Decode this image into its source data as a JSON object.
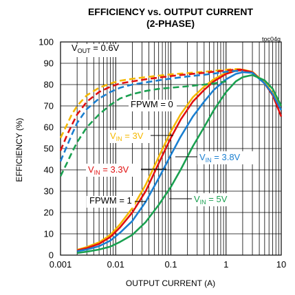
{
  "chart_data": {
    "type": "line",
    "title": "EFFICIENCY vs. OUTPUT CURRENT",
    "subtitle": "(2-PHASE)",
    "figure_id": "toc04g",
    "xlabel": "OUTPUT CURRENT (A)",
    "ylabel": "EFFICIENCY (%)",
    "x_scale": "log",
    "xlim": [
      0.001,
      10
    ],
    "ylim": [
      0,
      100
    ],
    "x_ticks": [
      "0.001",
      "0.01",
      "0.1",
      "1",
      "10"
    ],
    "y_ticks": [
      "0",
      "10",
      "20",
      "30",
      "40",
      "50",
      "60",
      "70",
      "80",
      "90",
      "100"
    ],
    "grid": true,
    "series": [
      {
        "color": "#f5b800",
        "dash": "dashed",
        "x": [
          0.001,
          0.0013,
          0.0016,
          0.002,
          0.003,
          0.005,
          0.008,
          0.012,
          0.02,
          0.035,
          0.06,
          0.1,
          0.2,
          0.4,
          0.7,
          1.0,
          1.5,
          2.0
        ],
        "y": [
          55,
          61,
          66,
          70,
          75,
          78.5,
          80.5,
          81.8,
          82.7,
          83.5,
          84.2,
          84.8,
          85.4,
          86,
          86.6,
          87,
          87.3,
          87.2
        ]
      },
      {
        "color": "#f5b800",
        "dash": "solid",
        "x": [
          0.002,
          0.003,
          0.005,
          0.008,
          0.012,
          0.02,
          0.035,
          0.06,
          0.1,
          0.15,
          0.25,
          0.4,
          0.6,
          1.0,
          1.5,
          2.0,
          3.0,
          5.0,
          7.0,
          10.0
        ],
        "y": [
          2.5,
          3.8,
          6,
          9.5,
          14.5,
          22,
          33,
          46,
          58,
          66,
          74,
          79,
          82.5,
          85.5,
          86.8,
          87,
          86,
          81,
          76,
          70
        ]
      },
      {
        "color": "#e01010",
        "dash": "dashed",
        "x": [
          0.001,
          0.0013,
          0.0016,
          0.002,
          0.003,
          0.005,
          0.008,
          0.012,
          0.02,
          0.035,
          0.06,
          0.1,
          0.2,
          0.4,
          0.7,
          1.0,
          1.5,
          2.0
        ],
        "y": [
          49,
          56,
          61,
          66,
          72,
          76.5,
          79,
          80.5,
          81.5,
          82.5,
          83.3,
          84,
          84.8,
          85.5,
          86.2,
          86.6,
          87,
          87
        ]
      },
      {
        "color": "#e01010",
        "dash": "solid",
        "x": [
          0.002,
          0.003,
          0.005,
          0.008,
          0.012,
          0.02,
          0.035,
          0.06,
          0.1,
          0.15,
          0.25,
          0.4,
          0.6,
          1.0,
          1.5,
          2.0,
          3.0,
          5.0,
          7.0,
          10.0
        ],
        "y": [
          2.2,
          3.3,
          5.3,
          8.5,
          13,
          20,
          30,
          43,
          55,
          63.5,
          72,
          77.5,
          81.5,
          85,
          86.5,
          86.8,
          85.8,
          80.5,
          75,
          65
        ]
      },
      {
        "color": "#1a7fd0",
        "dash": "dashed",
        "x": [
          0.001,
          0.0013,
          0.0016,
          0.002,
          0.003,
          0.005,
          0.008,
          0.012,
          0.02,
          0.035,
          0.06,
          0.1,
          0.2,
          0.4,
          0.7,
          1.0,
          1.5,
          2.0
        ],
        "y": [
          44,
          51,
          56.5,
          62,
          68.5,
          73.5,
          76.5,
          78.5,
          80,
          81,
          82,
          82.8,
          83.8,
          84.6,
          85.4,
          86,
          86.4,
          86.3
        ]
      },
      {
        "color": "#1a7fd0",
        "dash": "solid",
        "x": [
          0.002,
          0.003,
          0.005,
          0.008,
          0.012,
          0.02,
          0.035,
          0.06,
          0.1,
          0.15,
          0.25,
          0.4,
          0.6,
          1.0,
          1.5,
          2.0,
          3.0,
          5.0,
          7.0,
          10.0
        ],
        "y": [
          1.8,
          2.6,
          4.2,
          6.8,
          10.5,
          16,
          25,
          36,
          47,
          55.5,
          65,
          72,
          77.5,
          82.5,
          85,
          85.8,
          85.5,
          80.5,
          75.5,
          68
        ]
      },
      {
        "color": "#1aa050",
        "dash": "dashed",
        "x": [
          0.001,
          0.0013,
          0.0016,
          0.002,
          0.003,
          0.005,
          0.008,
          0.012,
          0.02,
          0.035,
          0.06,
          0.1,
          0.2,
          0.4,
          0.7,
          1.0
        ],
        "y": [
          37,
          43,
          48,
          53,
          60,
          66,
          70.5,
          73.5,
          75.5,
          77,
          78,
          78.5,
          79.2,
          80,
          80.8,
          81.5
        ]
      },
      {
        "color": "#1aa050",
        "dash": "solid",
        "x": [
          0.002,
          0.003,
          0.005,
          0.008,
          0.012,
          0.02,
          0.035,
          0.06,
          0.1,
          0.15,
          0.25,
          0.4,
          0.6,
          1.0,
          1.5,
          2.0,
          3.0,
          5.0,
          7.0,
          10.0
        ],
        "y": [
          1,
          1.6,
          2.6,
          4,
          6.2,
          9.5,
          15.5,
          23.5,
          32,
          40,
          51,
          60,
          68,
          76.5,
          81.5,
          83.5,
          84.5,
          82,
          78,
          70
        ]
      }
    ],
    "annotations": [
      {
        "main": "V",
        "sub": "OUT",
        "rest": " = 0.6V",
        "color": "#000000"
      },
      {
        "main": "FPWM = 0",
        "sub": "",
        "rest": "",
        "color": "#000000"
      },
      {
        "main": "V",
        "sub": "IN",
        "rest": " = 3V",
        "color": "#f5b800"
      },
      {
        "main": "V",
        "sub": "IN",
        "rest": " = 3.3V",
        "color": "#e01010"
      },
      {
        "main": "V",
        "sub": "IN",
        "rest": " = 3.8V",
        "color": "#1a7fd0"
      },
      {
        "main": "V",
        "sub": "IN",
        "rest": " = 5V",
        "color": "#1aa050"
      },
      {
        "main": "FPWM = 1",
        "sub": "",
        "rest": "",
        "color": "#000000"
      }
    ]
  }
}
